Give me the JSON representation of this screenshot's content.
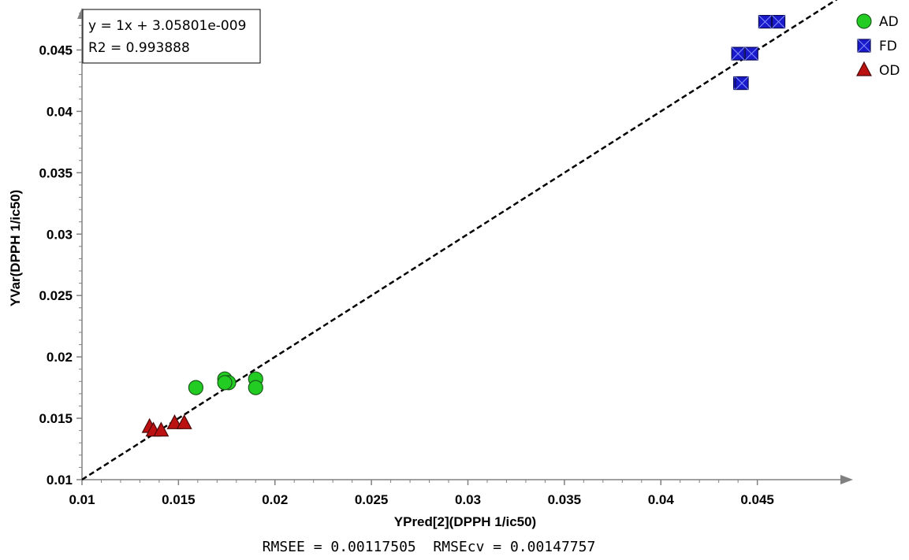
{
  "chart_data": {
    "type": "scatter",
    "xlabel": "YPred[2](DPPH 1/ic50)",
    "ylabel": "YVar(DPPH 1/ic50)",
    "xlim": [
      0.01,
      0.05
    ],
    "ylim": [
      0.01,
      0.0483
    ],
    "x_ticks": [
      "0.01",
      "0.015",
      "0.02",
      "0.025",
      "0.03",
      "0.035",
      "0.04",
      "0.045"
    ],
    "y_ticks": [
      "0.01",
      "0.015",
      "0.02",
      "0.025",
      "0.03",
      "0.035",
      "0.04",
      "0.045"
    ],
    "grid": false,
    "legend_position": "top-right",
    "series": [
      {
        "name": "AD",
        "marker": "circle",
        "color": "#22cc22",
        "points": [
          {
            "x": 0.0159,
            "y": 0.0175
          },
          {
            "x": 0.0174,
            "y": 0.0182
          },
          {
            "x": 0.0176,
            "y": 0.0179
          },
          {
            "x": 0.0174,
            "y": 0.0179
          },
          {
            "x": 0.019,
            "y": 0.0182
          },
          {
            "x": 0.019,
            "y": 0.0175
          }
        ]
      },
      {
        "name": "FD",
        "marker": "square",
        "color": "#1a1acc",
        "points": [
          {
            "x": 0.0454,
            "y": 0.0473
          },
          {
            "x": 0.0461,
            "y": 0.0473
          },
          {
            "x": 0.044,
            "y": 0.0447
          },
          {
            "x": 0.0447,
            "y": 0.0447
          },
          {
            "x": 0.0441,
            "y": 0.0423
          },
          {
            "x": 0.0442,
            "y": 0.0423
          }
        ]
      },
      {
        "name": "OD",
        "marker": "triangle",
        "color": "#bb1111",
        "points": [
          {
            "x": 0.0135,
            "y": 0.0143
          },
          {
            "x": 0.0137,
            "y": 0.014
          },
          {
            "x": 0.0141,
            "y": 0.014
          },
          {
            "x": 0.0148,
            "y": 0.0146
          },
          {
            "x": 0.0153,
            "y": 0.0146
          }
        ]
      }
    ],
    "fit_line": {
      "slope": 1,
      "intercept": 3.05801e-09,
      "style": "dashed"
    },
    "annotations": {
      "equation": "y = 1x + 3.05801e-009",
      "r2": "R2 = 0.993888",
      "footer": "RMSEE = 0.00117505  RMSEcv = 0.00147757"
    }
  }
}
